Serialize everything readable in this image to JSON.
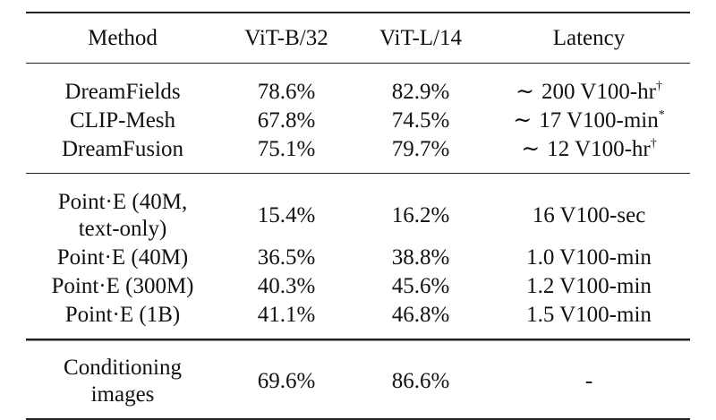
{
  "table": {
    "headers": [
      "Method",
      "ViT-B/32",
      "ViT-L/14",
      "Latency"
    ],
    "groups": [
      {
        "rows": [
          {
            "method": "DreamFields",
            "vit_b32": "78.6%",
            "vit_l14": "82.9%",
            "latency": "200 V100-hr",
            "latency_prefix": "∼",
            "latency_mark": "†"
          },
          {
            "method": "CLIP-Mesh",
            "vit_b32": "67.8%",
            "vit_l14": "74.5%",
            "latency": "17 V100-min",
            "latency_prefix": "∼",
            "latency_mark": "*"
          },
          {
            "method": "DreamFusion",
            "vit_b32": "75.1%",
            "vit_l14": "79.7%",
            "latency": "12 V100-hr",
            "latency_prefix": "∼",
            "latency_mark": "†"
          }
        ]
      },
      {
        "rows": [
          {
            "method_line1": "Point·E (40M,",
            "method_line2": "text-only)",
            "vit_b32": "15.4%",
            "vit_l14": "16.2%",
            "latency": "16 V100-sec"
          },
          {
            "method": "Point·E (40M)",
            "vit_b32": "36.5%",
            "vit_l14": "38.8%",
            "latency": "1.0 V100-min"
          },
          {
            "method": "Point·E (300M)",
            "vit_b32": "40.3%",
            "vit_l14": "45.6%",
            "latency": "1.2 V100-min"
          },
          {
            "method": "Point·E (1B)",
            "vit_b32": "41.1%",
            "vit_l14": "46.8%",
            "latency": "1.5 V100-min"
          }
        ]
      },
      {
        "rows": [
          {
            "method_line1": "Conditioning",
            "method_line2": "images",
            "vit_b32": "69.6%",
            "vit_l14": "86.6%",
            "latency": "-"
          }
        ]
      }
    ]
  }
}
